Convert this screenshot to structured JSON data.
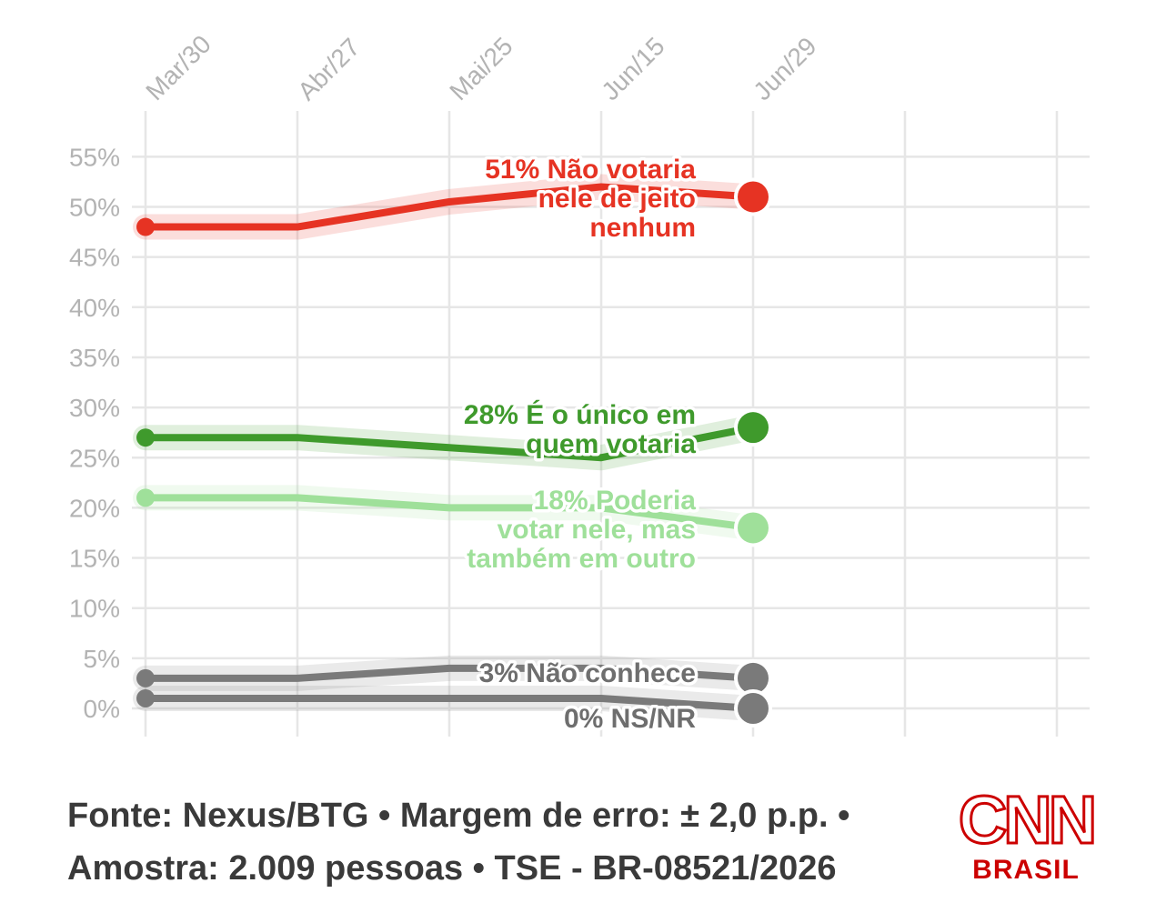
{
  "chart_data": {
    "type": "line",
    "x": [
      "Mar/30",
      "Abr/27",
      "Mai/25",
      "Jun/15",
      "Jun/29"
    ],
    "y_ticks": [
      "55%",
      "50%",
      "45%",
      "40%",
      "35%",
      "30%",
      "25%",
      "20%",
      "15%",
      "10%",
      "5%",
      "0%"
    ],
    "ylim": [
      0,
      55
    ],
    "grid": true,
    "series": [
      {
        "name": "Não votaria nele de jeito nenhum",
        "label_lines": [
          "51% Não votaria",
          "nele de jeito",
          "nenhum"
        ],
        "color": "#e63323",
        "values": [
          48,
          48,
          50.5,
          52,
          51
        ]
      },
      {
        "name": "É o único em quem votaria",
        "label_lines": [
          "28% É o único em",
          "quem votaria"
        ],
        "color": "#3f9a2c",
        "values": [
          27,
          27,
          26,
          25,
          28
        ]
      },
      {
        "name": "Poderia votar nele, mas também em outro",
        "label_lines": [
          "18% Poderia",
          "votar nele, mas",
          "também em outro"
        ],
        "color": "#9fe09a",
        "values": [
          21,
          21,
          20,
          20,
          18
        ]
      },
      {
        "name": "Não conhece",
        "label_lines": [
          "3% Não conhece"
        ],
        "color": "#7a7a7a",
        "values": [
          3,
          3,
          4,
          4,
          3
        ]
      },
      {
        "name": "NS/NR",
        "label_lines": [
          "0% NS/NR"
        ],
        "color": "#7a7a7a",
        "values": [
          1,
          1,
          1,
          1,
          0
        ]
      }
    ]
  },
  "footer": {
    "line1": "Fonte: Nexus/BTG • Margem de erro: ± 2,0 p.p. •",
    "line2": "Amostra: 2.009 pessoas • TSE - BR-08521/2026"
  },
  "logo": {
    "brand": "CNN",
    "sub": "BRASIL",
    "color": "#cc0000"
  }
}
